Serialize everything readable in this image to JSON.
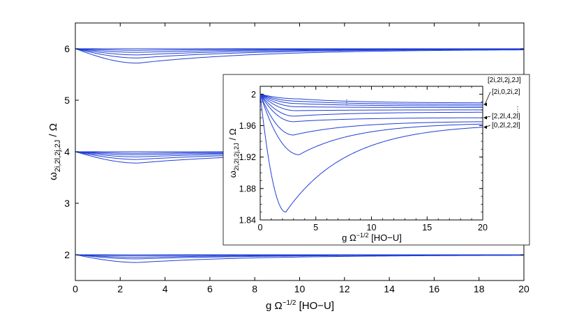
{
  "chart_data": [
    {
      "name": "main",
      "type": "line",
      "xlim": [
        0,
        20
      ],
      "ylim": [
        1.5,
        6.5
      ],
      "xticks": [
        "0",
        "2",
        "4",
        "6",
        "8",
        "10",
        "12",
        "14",
        "16",
        "18",
        "20"
      ],
      "yticks": [
        "2",
        "3",
        "4",
        "5",
        "6"
      ],
      "xlabel": {
        "main": "g Ω",
        "sup": "−1/2",
        "unit": "  [HO−U]"
      },
      "ylabel": {
        "main": "ω",
        "sub": "2i,2l,2j,2J",
        "unit": " / Ω"
      },
      "bands": [
        {
          "base": 2,
          "dips": [
            0.0,
            0.02,
            0.05,
            0.08,
            0.15
          ]
        },
        {
          "base": 4,
          "dips": [
            0.0,
            0.03,
            0.06,
            0.1,
            0.15,
            0.22
          ]
        },
        {
          "base": 6,
          "dips": [
            0.0,
            0.03,
            0.07,
            0.12,
            0.18,
            0.28
          ]
        }
      ],
      "line_color": "#1f3fd6"
    },
    {
      "name": "inset",
      "type": "line",
      "xlim": [
        0,
        20
      ],
      "ylim": [
        1.84,
        2.01
      ],
      "xticks": [
        "0",
        "5",
        "10",
        "15",
        "20"
      ],
      "yticks": [
        "1.84",
        "1.88",
        "1.92",
        "1.96",
        "2"
      ],
      "xlabel": {
        "main": "g Ω",
        "sup": "−1/2",
        "unit": "  [HO−U]"
      },
      "ylabel": {
        "main": "ω",
        "sub": "2i,2l,2j,2J",
        "unit": " / Ω"
      },
      "series": [
        {
          "label": "[2i,2l,2j,2J]",
          "dip": 0.006,
          "xmin": 3.5,
          "end": 1.989
        },
        {
          "label": "[2i,0,2i,2]",
          "dip": 0.009,
          "xmin": 3.5,
          "end": 1.987
        },
        {
          "label": "",
          "dip": 0.012,
          "xmin": 3.4,
          "end": 1.985
        },
        {
          "label": "",
          "dip": 0.016,
          "xmin": 3.3,
          "end": 1.983
        },
        {
          "label": "",
          "dip": 0.021,
          "xmin": 3.2,
          "end": 1.98
        },
        {
          "label": "",
          "dip": 0.028,
          "xmin": 3.1,
          "end": 1.977
        },
        {
          "label": "[2,2l,4,2l]",
          "dip": 0.035,
          "xmin": 3.0,
          "end": 1.97
        },
        {
          "label": "",
          "dip": 0.052,
          "xmin": 3.0,
          "end": 1.965
        },
        {
          "label": "",
          "dip": 0.077,
          "xmin": 3.5,
          "end": 1.962
        },
        {
          "label": "[0,2l,2,2l]",
          "dip": 0.15,
          "xmin": 2.3,
          "end": 1.958
        }
      ],
      "dots_label": "⋮",
      "line_color": "#1f3fd6"
    }
  ]
}
